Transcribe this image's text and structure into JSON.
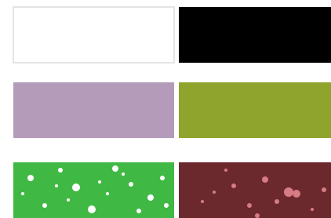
{
  "panels": [
    {
      "color": "#ffffff",
      "border": "#e4e4e4"
    },
    {
      "color": "#000000"
    },
    {
      "color": "#b39bb9"
    },
    {
      "color": "#8ea42d"
    },
    {
      "color": "#3fb944",
      "spots": "#ffffff"
    },
    {
      "color": "#6b292e",
      "spots": "#d77b84"
    }
  ]
}
